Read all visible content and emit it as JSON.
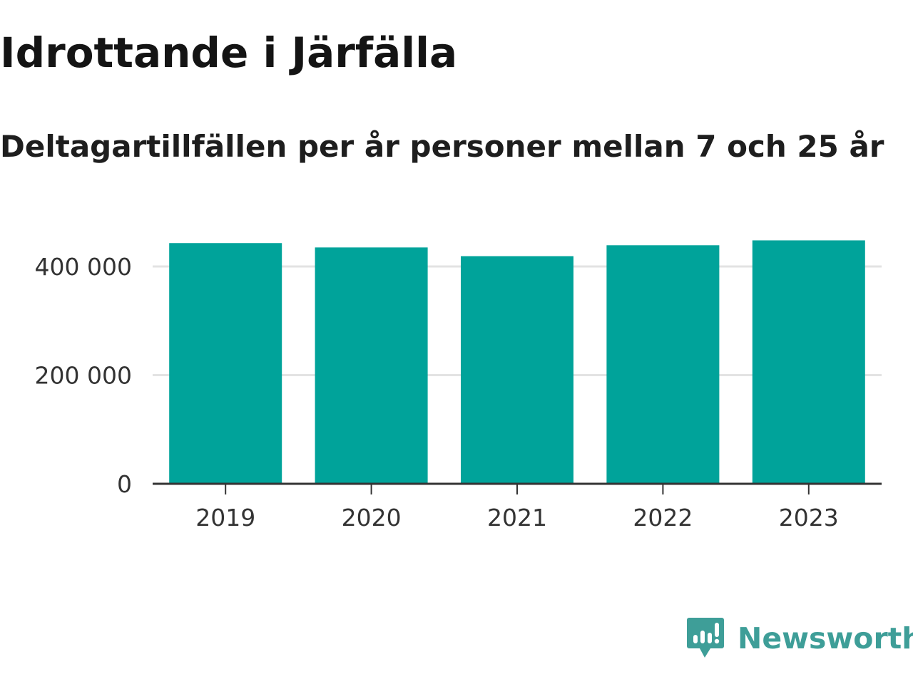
{
  "header": {
    "title": "Idrottande i Järfälla",
    "subtitle": "Deltagartillfällen per år personer mellan 7 och 25 år"
  },
  "chart_data": {
    "type": "bar",
    "title": "Idrottande i Järfälla",
    "subtitle": "Deltagartillfällen per år personer mellan 7 och 25 år",
    "categories": [
      "2019",
      "2020",
      "2021",
      "2022",
      "2023"
    ],
    "values": [
      443000,
      435000,
      419000,
      439000,
      448000
    ],
    "ylim": [
      0,
      460000
    ],
    "yticks": [
      0,
      200000,
      400000
    ],
    "ytick_labels": [
      "0",
      "200 000",
      "400 000"
    ],
    "xlabel": "",
    "ylabel": "",
    "grid": true,
    "legend": "none",
    "bar_color": "#00a39a",
    "grid_color": "#e3e3e3",
    "axis_color": "#333333"
  },
  "branding": {
    "name": "Newsworthy",
    "icon": "newsworthy-logo-icon",
    "color": "#3e9e98"
  }
}
